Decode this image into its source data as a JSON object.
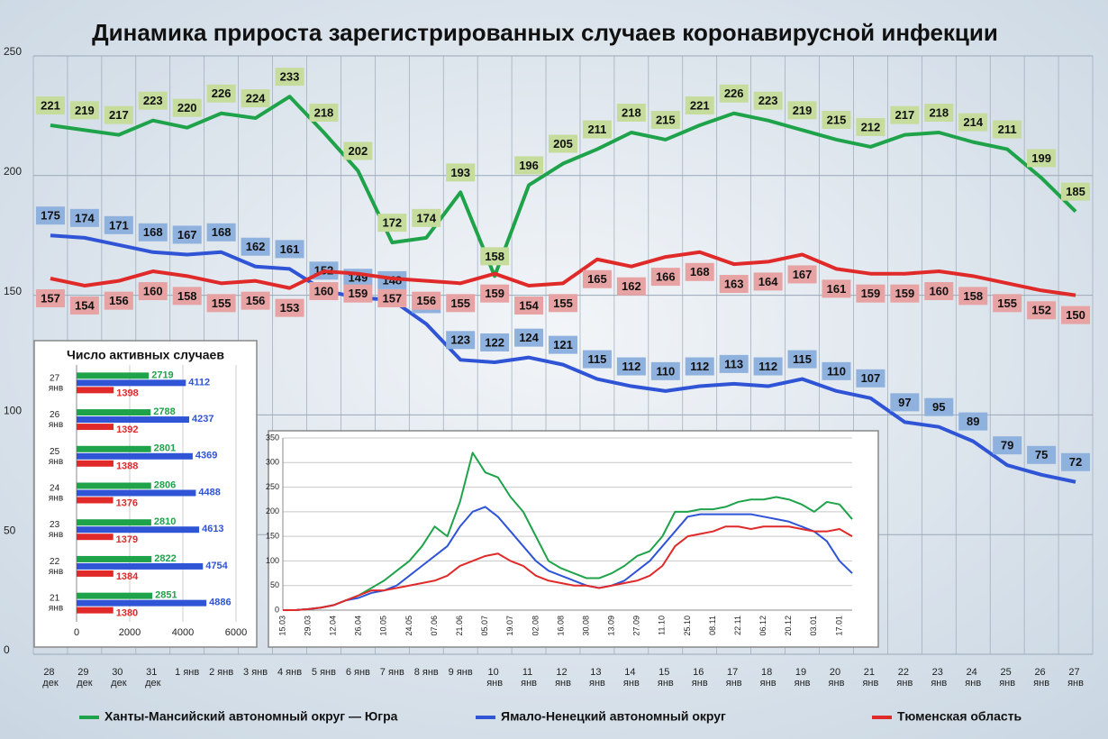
{
  "chart_data": [
    {
      "type": "line",
      "title": "Динамика прироста зарегистрированных случаев коронавирусной инфекции",
      "categories": [
        "28 дек",
        "29 дек",
        "30 дек",
        "31 дек",
        "1 янв",
        "2 янв",
        "3 янв",
        "4 янв",
        "5 янв",
        "6 янв",
        "7 янв",
        "8 янв",
        "9 янв",
        "10 янв",
        "11 янв",
        "12 янв",
        "13 янв",
        "14 янв",
        "15 янв",
        "16 янв",
        "17 янв",
        "18 янв",
        "19 янв",
        "20 янв",
        "21 янв",
        "22 янв",
        "23 янв",
        "24 янв",
        "25 янв",
        "26 янв",
        "27 янв"
      ],
      "ylim": [
        0,
        250
      ],
      "yticks": [
        0,
        50,
        100,
        150,
        200,
        250
      ],
      "grid": true,
      "legend": "bottom",
      "series": [
        {
          "name": "Ханты-Мансийский автономный округ — Югра",
          "color": "#1fa34a",
          "values": [
            221,
            219,
            217,
            223,
            220,
            226,
            224,
            233,
            218,
            202,
            172,
            174,
            193,
            158,
            196,
            205,
            211,
            218,
            215,
            221,
            226,
            223,
            219,
            215,
            212,
            217,
            218,
            214,
            211,
            199,
            185
          ]
        },
        {
          "name": "Ямало-Ненецкий автономный округ",
          "color": "#2f54d6",
          "values": [
            175,
            174,
            171,
            168,
            167,
            168,
            162,
            161,
            152,
            149,
            148,
            138,
            123,
            122,
            124,
            121,
            115,
            112,
            110,
            112,
            113,
            112,
            115,
            110,
            107,
            97,
            95,
            89,
            79,
            75,
            72
          ]
        },
        {
          "name": "Тюменская область",
          "color": "#e02a2a",
          "values": [
            157,
            154,
            156,
            160,
            158,
            155,
            156,
            153,
            160,
            159,
            157,
            156,
            155,
            159,
            154,
            155,
            165,
            162,
            166,
            168,
            163,
            164,
            167,
            161,
            159,
            159,
            160,
            158,
            155,
            152,
            150
          ]
        }
      ]
    },
    {
      "type": "hbar",
      "title": "Число активных случаев",
      "categories": [
        "27 янв",
        "26 янв",
        "25 янв",
        "24 янв",
        "23 янв",
        "22 янв",
        "21 янв"
      ],
      "xlim": [
        0,
        6000
      ],
      "xticks": [
        0,
        2000,
        4000,
        6000
      ],
      "grid": true,
      "series": [
        {
          "color": "#1fa34a",
          "values": [
            2719,
            2788,
            2801,
            2806,
            2810,
            2822,
            2851
          ]
        },
        {
          "color": "#2f54d6",
          "values": [
            4112,
            4237,
            4369,
            4488,
            4613,
            4754,
            4886
          ]
        },
        {
          "color": "#e02a2a",
          "values": [
            1398,
            1392,
            1388,
            1376,
            1379,
            1384,
            1380
          ]
        }
      ]
    },
    {
      "type": "line",
      "categories": [
        "15.03",
        null,
        "29.03",
        null,
        "12.04",
        null,
        "26.04",
        null,
        "10.05",
        null,
        "24.05",
        null,
        "07.06",
        null,
        "21.06",
        null,
        "05.07",
        null,
        "19.07",
        null,
        "02.08",
        null,
        "16.08",
        null,
        "30.08",
        null,
        "13.09",
        null,
        "27.09",
        null,
        "11.10",
        null,
        "25.10",
        null,
        "08.11",
        null,
        "22.11",
        null,
        "06.12",
        null,
        "20.12",
        null,
        "03.01",
        null,
        "17.01",
        null
      ],
      "ylim": [
        0,
        350
      ],
      "yticks": [
        0,
        50,
        100,
        150,
        200,
        250,
        300,
        350
      ],
      "grid": true,
      "series": [
        {
          "color": "#1fa34a",
          "values": [
            0,
            0,
            2,
            5,
            10,
            20,
            30,
            45,
            60,
            80,
            100,
            130,
            170,
            150,
            220,
            320,
            280,
            270,
            230,
            200,
            150,
            100,
            85,
            75,
            65,
            65,
            75,
            90,
            110,
            120,
            150,
            200,
            200,
            205,
            205,
            210,
            220,
            225,
            225,
            230,
            225,
            215,
            200,
            220,
            215,
            185
          ]
        },
        {
          "color": "#2f54d6",
          "values": [
            0,
            0,
            2,
            5,
            10,
            20,
            25,
            35,
            40,
            50,
            70,
            90,
            110,
            130,
            170,
            200,
            210,
            190,
            160,
            130,
            100,
            80,
            70,
            60,
            50,
            45,
            50,
            60,
            80,
            100,
            130,
            160,
            190,
            195,
            195,
            195,
            195,
            195,
            190,
            185,
            180,
            170,
            160,
            140,
            100,
            75
          ]
        },
        {
          "color": "#e02a2a",
          "values": [
            0,
            0,
            2,
            5,
            10,
            20,
            30,
            40,
            40,
            45,
            50,
            55,
            60,
            70,
            90,
            100,
            110,
            115,
            100,
            90,
            70,
            60,
            55,
            50,
            50,
            45,
            50,
            55,
            60,
            70,
            90,
            130,
            150,
            155,
            160,
            170,
            170,
            165,
            170,
            170,
            170,
            165,
            160,
            160,
            165,
            150
          ]
        }
      ]
    }
  ]
}
